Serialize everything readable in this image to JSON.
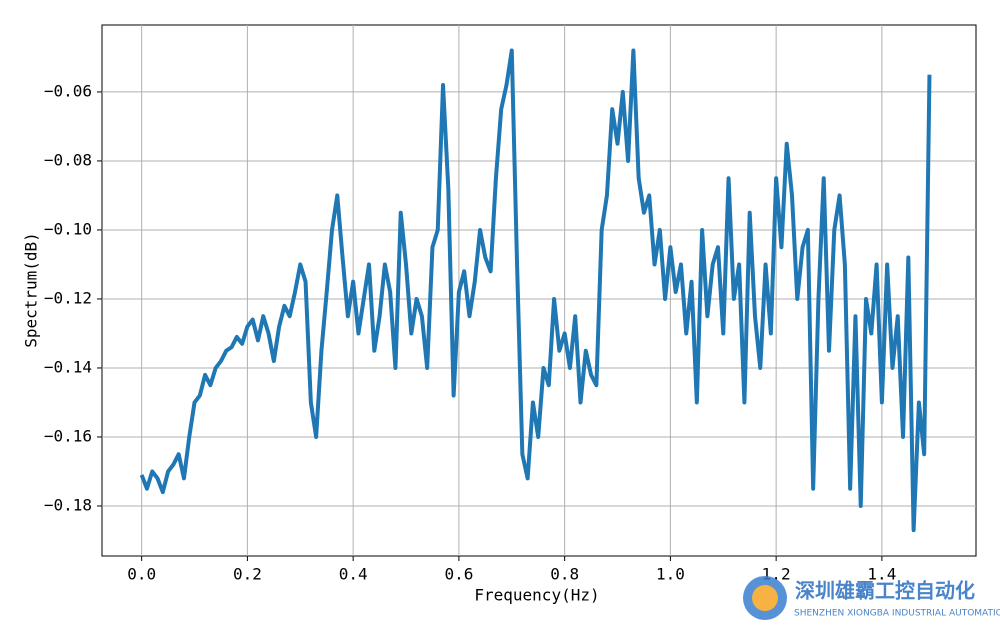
{
  "chart_data": {
    "type": "line",
    "xlabel": "Frequency(Hz)",
    "ylabel": "Spectrum(dB)",
    "watermark": {
      "title": "深圳雄霸工控自动化",
      "subtitle": "SHENZHEN XIONGBA INDUSTRIAL AUTOMATION"
    },
    "xlim": [
      -0.075,
      1.578
    ],
    "ylim": [
      -0.1945,
      -0.0406
    ],
    "grid": true,
    "xticks": [
      {
        "value": 0,
        "label": "0.0"
      },
      0.2,
      0.4,
      0.6,
      0.8,
      {
        "value": 1,
        "label": "1.0"
      },
      1.2,
      1.4
    ],
    "yticks": [
      {
        "value": -0.18,
        "label": "−0.18"
      },
      {
        "value": -0.16,
        "label": "−0.16"
      },
      {
        "value": -0.14,
        "label": "−0.14"
      },
      {
        "value": -0.12,
        "label": "−0.12"
      },
      {
        "value": -0.1,
        "label": "−0.10"
      },
      {
        "value": -0.08,
        "label": "−0.08"
      },
      {
        "value": -0.06,
        "label": "−0.06"
      }
    ],
    "x": [
      0,
      0.01,
      0.02,
      0.03,
      0.04,
      0.05,
      0.06,
      0.07,
      0.08,
      0.09,
      0.1,
      0.11,
      0.12,
      0.13,
      0.14,
      0.15,
      0.16,
      0.17,
      0.18,
      0.19,
      0.2,
      0.21,
      0.22,
      0.23,
      0.24,
      0.25,
      0.26,
      0.27,
      0.28,
      0.29,
      0.3,
      0.31,
      0.32,
      0.33,
      0.34,
      0.35,
      0.36,
      0.37,
      0.38,
      0.39,
      0.4,
      0.41,
      0.42,
      0.43,
      0.44,
      0.45,
      0.46,
      0.47,
      0.48,
      0.49,
      0.5,
      0.51,
      0.52,
      0.53,
      0.54,
      0.55,
      0.56,
      0.57,
      0.58,
      0.59,
      0.6,
      0.61,
      0.62,
      0.63,
      0.64,
      0.65,
      0.66,
      0.67,
      0.68,
      0.69,
      0.7,
      0.71,
      0.72,
      0.73,
      0.74,
      0.75,
      0.76,
      0.77,
      0.78,
      0.79,
      0.8,
      0.81,
      0.82,
      0.83,
      0.84,
      0.85,
      0.86,
      0.87,
      0.88,
      0.89,
      0.9,
      0.91,
      0.92,
      0.93,
      0.94,
      0.95,
      0.96,
      0.97,
      0.98,
      0.99,
      1,
      1.01,
      1.02,
      1.03,
      1.04,
      1.05,
      1.06,
      1.07,
      1.08,
      1.09,
      1.1,
      1.11,
      1.12,
      1.13,
      1.14,
      1.15,
      1.16,
      1.17,
      1.18,
      1.19,
      1.2,
      1.21,
      1.22,
      1.23,
      1.24,
      1.25,
      1.26,
      1.27,
      1.28,
      1.29,
      1.3,
      1.31,
      1.32,
      1.33,
      1.34,
      1.35,
      1.36,
      1.37,
      1.38,
      1.39,
      1.4,
      1.41,
      1.42,
      1.43,
      1.44,
      1.45,
      1.46,
      1.47,
      1.48,
      1.49
    ],
    "series": [
      {
        "color": "#1f77b4",
        "values": [
          -0.171,
          -0.175,
          -0.17,
          -0.172,
          -0.176,
          -0.17,
          -0.168,
          -0.165,
          -0.172,
          -0.16,
          -0.15,
          -0.148,
          -0.142,
          -0.145,
          -0.14,
          -0.138,
          -0.135,
          -0.134,
          -0.131,
          -0.133,
          -0.128,
          -0.126,
          -0.132,
          -0.125,
          -0.13,
          -0.138,
          -0.128,
          -0.122,
          -0.125,
          -0.118,
          -0.11,
          -0.115,
          -0.15,
          -0.16,
          -0.135,
          -0.118,
          -0.1,
          -0.09,
          -0.108,
          -0.125,
          -0.115,
          -0.13,
          -0.12,
          -0.11,
          -0.135,
          -0.125,
          -0.11,
          -0.118,
          -0.14,
          -0.095,
          -0.11,
          -0.13,
          -0.12,
          -0.125,
          -0.14,
          -0.105,
          -0.1,
          -0.058,
          -0.088,
          -0.148,
          -0.118,
          -0.112,
          -0.125,
          -0.115,
          -0.1,
          -0.108,
          -0.112,
          -0.085,
          -0.065,
          -0.058,
          -0.048,
          -0.11,
          -0.165,
          -0.172,
          -0.15,
          -0.16,
          -0.14,
          -0.145,
          -0.12,
          -0.135,
          -0.13,
          -0.14,
          -0.125,
          -0.15,
          -0.135,
          -0.142,
          -0.145,
          -0.1,
          -0.09,
          -0.065,
          -0.075,
          -0.06,
          -0.08,
          -0.048,
          -0.085,
          -0.095,
          -0.09,
          -0.11,
          -0.1,
          -0.12,
          -0.105,
          -0.118,
          -0.11,
          -0.13,
          -0.115,
          -0.15,
          -0.1,
          -0.125,
          -0.11,
          -0.105,
          -0.13,
          -0.085,
          -0.12,
          -0.11,
          -0.15,
          -0.095,
          -0.125,
          -0.14,
          -0.11,
          -0.13,
          -0.085,
          -0.105,
          -0.075,
          -0.09,
          -0.12,
          -0.105,
          -0.1,
          -0.175,
          -0.12,
          -0.085,
          -0.135,
          -0.1,
          -0.09,
          -0.11,
          -0.175,
          -0.125,
          -0.18,
          -0.12,
          -0.13,
          -0.11,
          -0.15,
          -0.11,
          -0.14,
          -0.125,
          -0.16,
          -0.108,
          -0.187,
          -0.15,
          -0.165,
          -0.055
        ]
      }
    ]
  }
}
